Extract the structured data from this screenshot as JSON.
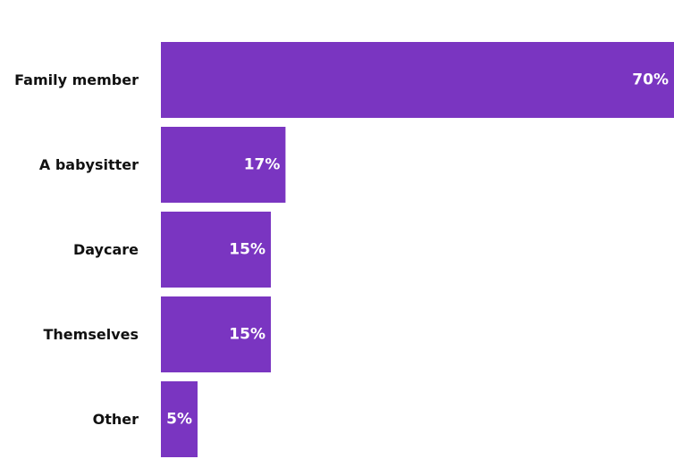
{
  "chart_data": {
    "type": "bar",
    "orientation": "horizontal",
    "categories": [
      "Family member",
      "A babysitter",
      "Daycare",
      "Themselves",
      "Other"
    ],
    "values": [
      70,
      17,
      15,
      15,
      5
    ],
    "value_labels": [
      "70%",
      "17%",
      "15%",
      "15%",
      "5%"
    ],
    "unit": "%",
    "xlim": [
      0,
      70
    ],
    "grid": false,
    "legend": "none",
    "bar_color": "#7a35c1",
    "label_color": "#ffffff",
    "category_color": "#111111"
  }
}
